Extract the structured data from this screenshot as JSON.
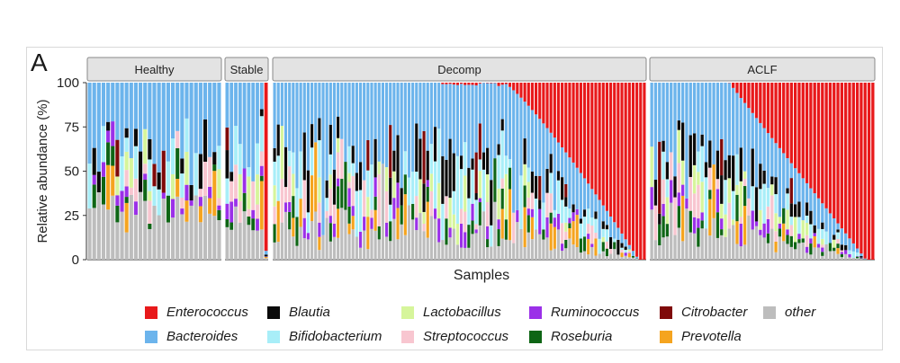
{
  "panel_label": "A",
  "chart_data": {
    "type": "bar",
    "stacked": true,
    "xlabel": "Samples",
    "ylabel": "Relative abundance (%)",
    "ylim": [
      0,
      100
    ],
    "yticks": [
      "0",
      "25",
      "50",
      "75",
      "100"
    ],
    "facets": [
      {
        "name": "Healthy",
        "n_samples": 29,
        "notes": "mostly Bacteroides on top, other at bottom"
      },
      {
        "name": "Stable",
        "n_samples": 10,
        "notes": "Bacteroides dominant; one Enterococcus sample at right edge"
      },
      {
        "name": "Decomp",
        "n_samples": 100,
        "notes": "Enterococcus increases sharply across the right third"
      },
      {
        "name": "ACLF",
        "n_samples": 58,
        "notes": "Enterococcus dominant in right half"
      }
    ],
    "taxa": [
      {
        "name": "Enterococcus",
        "color": "#e8191b"
      },
      {
        "name": "Bacteroides",
        "color": "#6cb4ec"
      },
      {
        "name": "Blautia",
        "color": "#0a0a0a"
      },
      {
        "name": "Bifidobacterium",
        "color": "#a8eef8"
      },
      {
        "name": "Lactobacillus",
        "color": "#d6f59b"
      },
      {
        "name": "Streptococcus",
        "color": "#f8c6d0"
      },
      {
        "name": "Ruminococcus",
        "color": "#9b30e8"
      },
      {
        "name": "Roseburia",
        "color": "#0e6515"
      },
      {
        "name": "Citrobacter",
        "color": "#7f0a0a"
      },
      {
        "name": "Prevotella",
        "color": "#f5a41f"
      },
      {
        "name": "other",
        "color": "#bdbdbd"
      }
    ]
  }
}
